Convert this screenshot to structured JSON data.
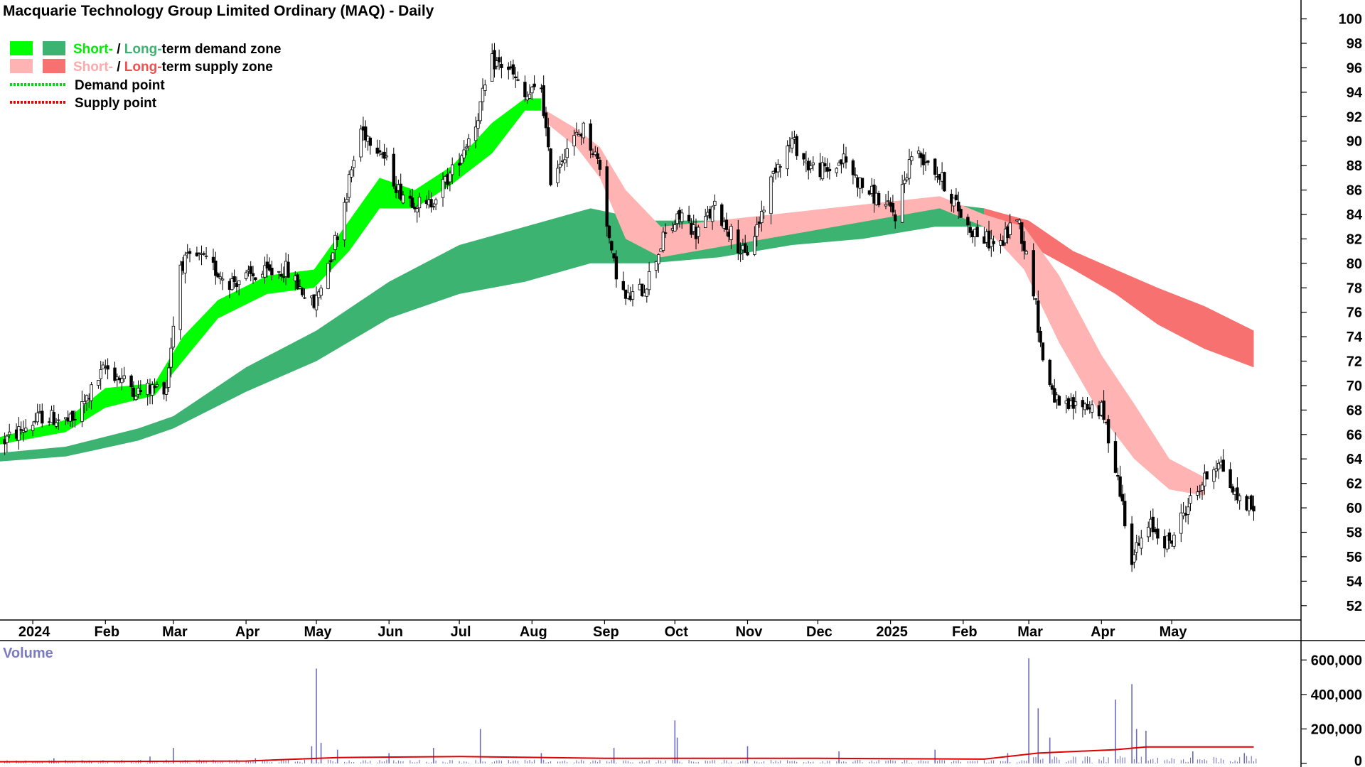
{
  "title": "Macquarie Technology Group Limited Ordinary (MAQ) - Daily",
  "legend": {
    "demand_zone": {
      "short": "Short-",
      "sep": " / ",
      "long": "Long-",
      "rest": "term demand zone"
    },
    "supply_zone": {
      "short": "Short-",
      "sep": " / ",
      "long": "Long-",
      "rest": "term supply zone"
    },
    "demand_point": "Demand point",
    "supply_point": "Supply point"
  },
  "volume_label": "Volume",
  "colors": {
    "short_demand": "#00ff00",
    "long_demand": "#3cb371",
    "short_supply": "#ffb3b3",
    "long_supply": "#f87171",
    "overlap_zone": "#ff6a1a",
    "demand_point": "#00dd00",
    "supply_point": "#ee0000",
    "volume_bars": "#6b6bc0",
    "volume_avg": "#dd0000",
    "candle": "#000000"
  },
  "chart_data": {
    "type": "candlestick",
    "title": "Macquarie Technology Group Limited Ordinary (MAQ) - Daily",
    "price_axis": {
      "ticks": [
        100,
        98,
        96,
        94,
        92,
        90,
        88,
        86,
        84,
        82,
        80,
        78,
        76,
        74,
        72,
        70,
        68,
        66,
        64,
        62,
        60,
        58,
        56,
        54,
        52
      ],
      "ylim": [
        51,
        100.5
      ]
    },
    "volume_axis": {
      "ticks": [
        "600,000",
        "400,000",
        "200,000",
        "0"
      ],
      "tick_values": [
        600000,
        400000,
        200000,
        0
      ],
      "ylim": [
        0,
        700000
      ]
    },
    "x_axis": {
      "labels": [
        "2024",
        "Feb",
        "Mar",
        "Apr",
        "May",
        "Jun",
        "Jul",
        "Aug",
        "Sep",
        "Oct",
        "Nov",
        "Dec",
        "2025",
        "Feb",
        "Mar",
        "Apr",
        "May"
      ],
      "label_dates": [
        "2024-01-01",
        "2024-02-01",
        "2024-03-01",
        "2024-04-01",
        "2024-05-01",
        "2024-06-01",
        "2024-07-01",
        "2024-08-01",
        "2024-09-01",
        "2024-10-01",
        "2024-11-01",
        "2024-12-01",
        "2025-01-01",
        "2025-02-01",
        "2025-03-01",
        "2025-04-01",
        "2025-05-01"
      ],
      "start": "2023-12-18",
      "end": "2025-06-10"
    },
    "price_series": [
      [
        "2023-12-20",
        65.5
      ],
      [
        "2024-01-05",
        67.5
      ],
      [
        "2024-01-18",
        67.0
      ],
      [
        "2024-02-01",
        71.5
      ],
      [
        "2024-02-15",
        69.5
      ],
      [
        "2024-02-27",
        70.0
      ],
      [
        "2024-03-04",
        80.0
      ],
      [
        "2024-03-12",
        80.5
      ],
      [
        "2024-03-25",
        78.5
      ],
      [
        "2024-04-05",
        79.0
      ],
      [
        "2024-04-18",
        79.5
      ],
      [
        "2024-04-30",
        76.5
      ],
      [
        "2024-05-10",
        82.5
      ],
      [
        "2024-05-20",
        91.0
      ],
      [
        "2024-05-28",
        89.5
      ],
      [
        "2024-06-05",
        86.0
      ],
      [
        "2024-06-17",
        84.5
      ],
      [
        "2024-06-28",
        87.5
      ],
      [
        "2024-07-08",
        91.5
      ],
      [
        "2024-07-15",
        96.5
      ],
      [
        "2024-07-22",
        96.0
      ],
      [
        "2024-07-29",
        93.5
      ],
      [
        "2024-08-05",
        94.5
      ],
      [
        "2024-08-09",
        87.0
      ],
      [
        "2024-08-16",
        89.5
      ],
      [
        "2024-08-23",
        91.0
      ],
      [
        "2024-08-30",
        88.0
      ],
      [
        "2024-09-04",
        80.5
      ],
      [
        "2024-09-10",
        77.0
      ],
      [
        "2024-09-18",
        78.0
      ],
      [
        "2024-09-26",
        82.0
      ],
      [
        "2024-10-04",
        84.0
      ],
      [
        "2024-10-10",
        82.5
      ],
      [
        "2024-10-18",
        84.5
      ],
      [
        "2024-10-25",
        82.5
      ],
      [
        "2024-10-31",
        80.5
      ],
      [
        "2024-11-06",
        83.5
      ],
      [
        "2024-11-13",
        88.0
      ],
      [
        "2024-11-20",
        90.0
      ],
      [
        "2024-11-27",
        88.0
      ],
      [
        "2024-12-05",
        87.5
      ],
      [
        "2024-12-12",
        88.5
      ],
      [
        "2024-12-19",
        86.5
      ],
      [
        "2025-01-03",
        84.0
      ],
      [
        "2025-01-10",
        89.0
      ],
      [
        "2025-01-17",
        88.5
      ],
      [
        "2025-01-24",
        86.5
      ],
      [
        "2025-02-03",
        83.0
      ],
      [
        "2025-02-10",
        82.0
      ],
      [
        "2025-02-17",
        81.5
      ],
      [
        "2025-02-24",
        84.0
      ],
      [
        "2025-03-03",
        78.0
      ],
      [
        "2025-03-07",
        72.0
      ],
      [
        "2025-03-14",
        68.0
      ],
      [
        "2025-03-24",
        68.5
      ],
      [
        "2025-04-01",
        68.0
      ],
      [
        "2025-04-07",
        63.5
      ],
      [
        "2025-04-14",
        56.0
      ],
      [
        "2025-04-22",
        58.5
      ],
      [
        "2025-04-30",
        57.0
      ],
      [
        "2025-05-07",
        60.0
      ],
      [
        "2025-05-14",
        62.0
      ],
      [
        "2025-05-21",
        64.0
      ],
      [
        "2025-05-28",
        61.0
      ],
      [
        "2025-06-05",
        60.0
      ]
    ],
    "short_term_demand_zone": [
      [
        "2023-12-18",
        65.2,
        65.8
      ],
      [
        "2024-01-15",
        66.2,
        67.2
      ],
      [
        "2024-02-01",
        68.2,
        69.8
      ],
      [
        "2024-02-22",
        69.2,
        70.2
      ],
      [
        "2024-03-05",
        72.0,
        74.0
      ],
      [
        "2024-03-20",
        75.5,
        77.0
      ],
      [
        "2024-04-10",
        77.5,
        79.0
      ],
      [
        "2024-04-30",
        78.0,
        79.5
      ],
      [
        "2024-05-15",
        81.0,
        83.5
      ],
      [
        "2024-05-28",
        84.5,
        87.0
      ],
      [
        "2024-06-12",
        84.5,
        86.0
      ],
      [
        "2024-06-28",
        86.5,
        88.0
      ],
      [
        "2024-07-15",
        89.0,
        91.5
      ],
      [
        "2024-07-29",
        92.5,
        93.5
      ],
      [
        "2024-08-05",
        92.5,
        93.5
      ]
    ],
    "short_term_supply_zone": [
      [
        "2024-08-07",
        91.5,
        92.5
      ],
      [
        "2024-08-20",
        89.5,
        91.0
      ],
      [
        "2024-08-30",
        87.0,
        89.5
      ],
      [
        "2024-09-10",
        82.0,
        86.0
      ],
      [
        "2024-09-25",
        80.5,
        83.0
      ],
      [
        "2025-01-22",
        84.5,
        85.5
      ],
      [
        "2025-02-10",
        83.0,
        84.0
      ],
      [
        "2025-02-27",
        79.5,
        83.0
      ],
      [
        "2025-03-14",
        73.5,
        79.0
      ],
      [
        "2025-04-01",
        67.5,
        72.5
      ],
      [
        "2025-04-15",
        64.0,
        68.5
      ],
      [
        "2025-04-30",
        61.5,
        64.0
      ],
      [
        "2025-05-15",
        61.0,
        62.5
      ]
    ],
    "long_term_demand_zone": [
      [
        "2023-12-18",
        63.8,
        64.5
      ],
      [
        "2024-01-15",
        64.2,
        65.0
      ],
      [
        "2024-02-15",
        65.5,
        66.5
      ],
      [
        "2024-03-01",
        66.5,
        67.5
      ],
      [
        "2024-04-01",
        69.5,
        71.5
      ],
      [
        "2024-05-01",
        72.0,
        74.5
      ],
      [
        "2024-06-01",
        75.5,
        78.5
      ],
      [
        "2024-07-01",
        77.5,
        81.5
      ],
      [
        "2024-07-29",
        78.5,
        83.0
      ],
      [
        "2024-08-26",
        80.0,
        84.5
      ],
      [
        "2024-09-20",
        80.0,
        83.5
      ],
      [
        "2024-10-20",
        80.5,
        83.5
      ],
      [
        "2024-11-20",
        81.5,
        84.0
      ],
      [
        "2024-12-20",
        82.0,
        84.5
      ],
      [
        "2025-01-20",
        83.0,
        85.0
      ],
      [
        "2025-02-10",
        83.0,
        84.5
      ]
    ],
    "long_term_supply_zone": [
      [
        "2025-02-10",
        83.0,
        84.5
      ],
      [
        "2025-03-01",
        81.5,
        83.5
      ],
      [
        "2025-03-20",
        79.5,
        81.0
      ],
      [
        "2025-04-07",
        77.5,
        79.5
      ],
      [
        "2025-04-25",
        75.0,
        78.0
      ],
      [
        "2025-05-15",
        73.0,
        76.5
      ],
      [
        "2025-06-05",
        71.5,
        74.5
      ]
    ],
    "volume_series": [
      [
        "2024-01-10",
        30000
      ],
      [
        "2024-02-20",
        40000
      ],
      [
        "2024-03-01",
        90000
      ],
      [
        "2024-04-05",
        30000
      ],
      [
        "2024-04-29",
        100000
      ],
      [
        "2024-05-01",
        550000
      ],
      [
        "2024-05-03",
        120000
      ],
      [
        "2024-05-10",
        80000
      ],
      [
        "2024-06-01",
        60000
      ],
      [
        "2024-06-20",
        90000
      ],
      [
        "2024-07-10",
        200000
      ],
      [
        "2024-08-05",
        60000
      ],
      [
        "2024-09-05",
        90000
      ],
      [
        "2024-10-01",
        250000
      ],
      [
        "2024-10-02",
        150000
      ],
      [
        "2024-11-01",
        100000
      ],
      [
        "2024-12-10",
        70000
      ],
      [
        "2025-01-20",
        80000
      ],
      [
        "2025-02-20",
        60000
      ],
      [
        "2025-03-01",
        610000
      ],
      [
        "2025-03-05",
        320000
      ],
      [
        "2025-03-10",
        150000
      ],
      [
        "2025-04-07",
        370000
      ],
      [
        "2025-04-14",
        460000
      ],
      [
        "2025-04-16",
        200000
      ],
      [
        "2025-04-20",
        190000
      ],
      [
        "2025-05-10",
        70000
      ],
      [
        "2025-06-01",
        60000
      ]
    ],
    "volume_average": [
      [
        "2023-12-18",
        10000
      ],
      [
        "2024-04-01",
        14000
      ],
      [
        "2024-05-10",
        34000
      ],
      [
        "2024-07-01",
        40000
      ],
      [
        "2024-09-01",
        30000
      ],
      [
        "2024-12-01",
        30000
      ],
      [
        "2025-02-10",
        25000
      ],
      [
        "2025-03-05",
        60000
      ],
      [
        "2025-04-07",
        80000
      ],
      [
        "2025-04-20",
        96000
      ],
      [
        "2025-06-05",
        96000
      ]
    ]
  }
}
